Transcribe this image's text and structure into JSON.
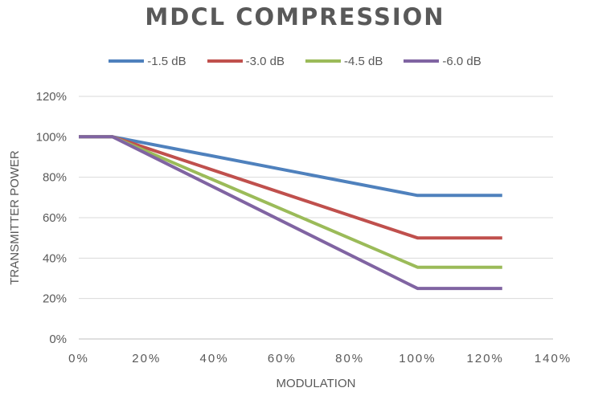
{
  "chart_data": {
    "type": "line",
    "title": "MDCL COMPRESSION",
    "xlabel": "MODULATION",
    "ylabel": "TRANSMITTER POWER",
    "xlim": [
      0,
      140
    ],
    "ylim": [
      0,
      120
    ],
    "x_ticks": [
      "0%",
      "20%",
      "40%",
      "60%",
      "80%",
      "100%",
      "120%",
      "140%"
    ],
    "y_ticks": [
      "0%",
      "20%",
      "40%",
      "60%",
      "80%",
      "100%",
      "120%"
    ],
    "grid": "horizontal",
    "legend_position": "top",
    "x": [
      0,
      10,
      100,
      125
    ],
    "series": [
      {
        "name": "-1.5 dB",
        "color": "#4F81BD",
        "values": [
          100,
          100,
          71,
          71
        ]
      },
      {
        "name": "-3.0 dB",
        "color": "#C0504D",
        "values": [
          100,
          100,
          50,
          50
        ]
      },
      {
        "name": "-4.5 dB",
        "color": "#9BBB59",
        "values": [
          100,
          100,
          35.5,
          35.5
        ]
      },
      {
        "name": "-6.0 dB",
        "color": "#8064A2",
        "values": [
          100,
          100,
          25,
          25
        ]
      }
    ]
  }
}
